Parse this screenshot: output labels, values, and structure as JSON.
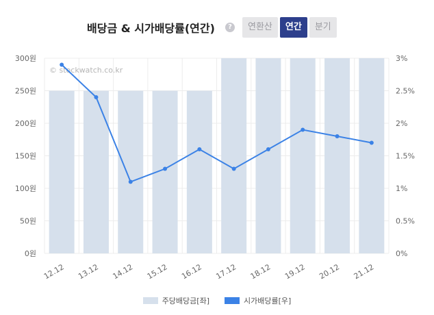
{
  "header": {
    "title": "배당금 & 시가배당률(연간)",
    "help": "?",
    "tabs": [
      {
        "label": "연환산",
        "active": false
      },
      {
        "label": "연간",
        "active": true
      },
      {
        "label": "분기",
        "active": false
      }
    ]
  },
  "watermark": "© stockwatch.co.kr",
  "colors": {
    "bar": "#d6e0ec",
    "line": "#3b82e6",
    "active_tab": "#2d3f8c"
  },
  "chart_data": {
    "type": "bar",
    "categories": [
      "12.12",
      "13.12",
      "14.12",
      "15.12",
      "16.12",
      "17.12",
      "18.12",
      "19.12",
      "20.12",
      "21.12"
    ],
    "series": [
      {
        "name": "주당배당금[좌]",
        "type": "bar",
        "axis": "left",
        "values": [
          250,
          250,
          250,
          250,
          250,
          300,
          300,
          300,
          300,
          300
        ]
      },
      {
        "name": "시가배당률[우]",
        "type": "line",
        "axis": "right",
        "values": [
          2.9,
          2.4,
          1.1,
          1.3,
          1.6,
          1.3,
          1.6,
          1.9,
          1.8,
          1.7
        ]
      }
    ],
    "y_left": {
      "range": [
        0,
        300
      ],
      "ticks": [
        "0원",
        "50원",
        "100원",
        "150원",
        "200원",
        "250원",
        "300원"
      ]
    },
    "y_right": {
      "range": [
        0,
        3
      ],
      "ticks": [
        "0%",
        "0.5%",
        "1%",
        "1.5%",
        "2%",
        "2.5%",
        "3%"
      ]
    },
    "grid": true,
    "legend_position": "bottom"
  }
}
